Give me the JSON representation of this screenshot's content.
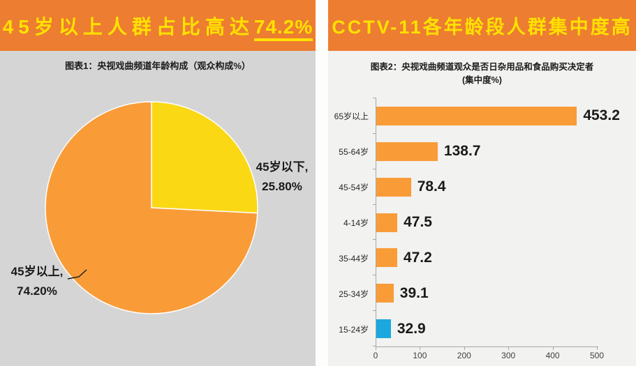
{
  "left_panel": {
    "title_main": "45岁以上人群占比高达",
    "title_underlined": "74.2%",
    "subtitle": "图表1：央视戏曲频道年龄构成（观众构成%）"
  },
  "right_panel": {
    "title": "CCTV-11各年龄段人群集中度高",
    "subtitle_line1": "图表2：央视戏曲频道观众是否日杂用品和食品购买决定者",
    "subtitle_line2": "(集中度%)"
  },
  "colors": {
    "header_orange": "#ED7D31",
    "title_yellow": "#FFE100",
    "pie_yellow": "#FAD814",
    "chart_orange": "#F99C38",
    "bar_blue": "#1BA8DF",
    "left_body_gray": "#D5D5D5",
    "right_body_gray": "#F2F2F0",
    "dark_text": "#1A1A1A",
    "axis_gray": "#A6A6A6"
  },
  "chart_data": [
    {
      "type": "pie",
      "title": "图表1：央视戏曲频道年龄构成（观众构成%）",
      "slices": [
        {
          "label": "45岁以下",
          "value": 25.8,
          "display": "25.80%",
          "color": "#FAD814"
        },
        {
          "label": "45岁以上",
          "value": 74.2,
          "display": "74.20%",
          "color": "#F99C38"
        }
      ],
      "start_angle": "top",
      "direction": "clockwise",
      "legend": "none",
      "data_labels": "outside"
    },
    {
      "type": "bar",
      "orientation": "horizontal",
      "title": "图表2：央视戏曲频道观众是否日杂用品和食品购买决定者（集中度%）",
      "categories": [
        "65岁以上",
        "55-64岁",
        "45-54岁",
        "4-14岁",
        "35-44岁",
        "25-34岁",
        "15-24岁"
      ],
      "values": [
        453.2,
        138.7,
        78.4,
        47.5,
        47.2,
        39.1,
        32.9
      ],
      "bar_colors": [
        "#F99C38",
        "#F99C38",
        "#F99C38",
        "#F99C38",
        "#F99C38",
        "#F99C38",
        "#1BA8DF"
      ],
      "xlim": [
        0,
        500
      ],
      "xticks": [
        0,
        100,
        200,
        300,
        400,
        500
      ],
      "value_labels": true,
      "grid": "off",
      "legend": "none"
    }
  ]
}
